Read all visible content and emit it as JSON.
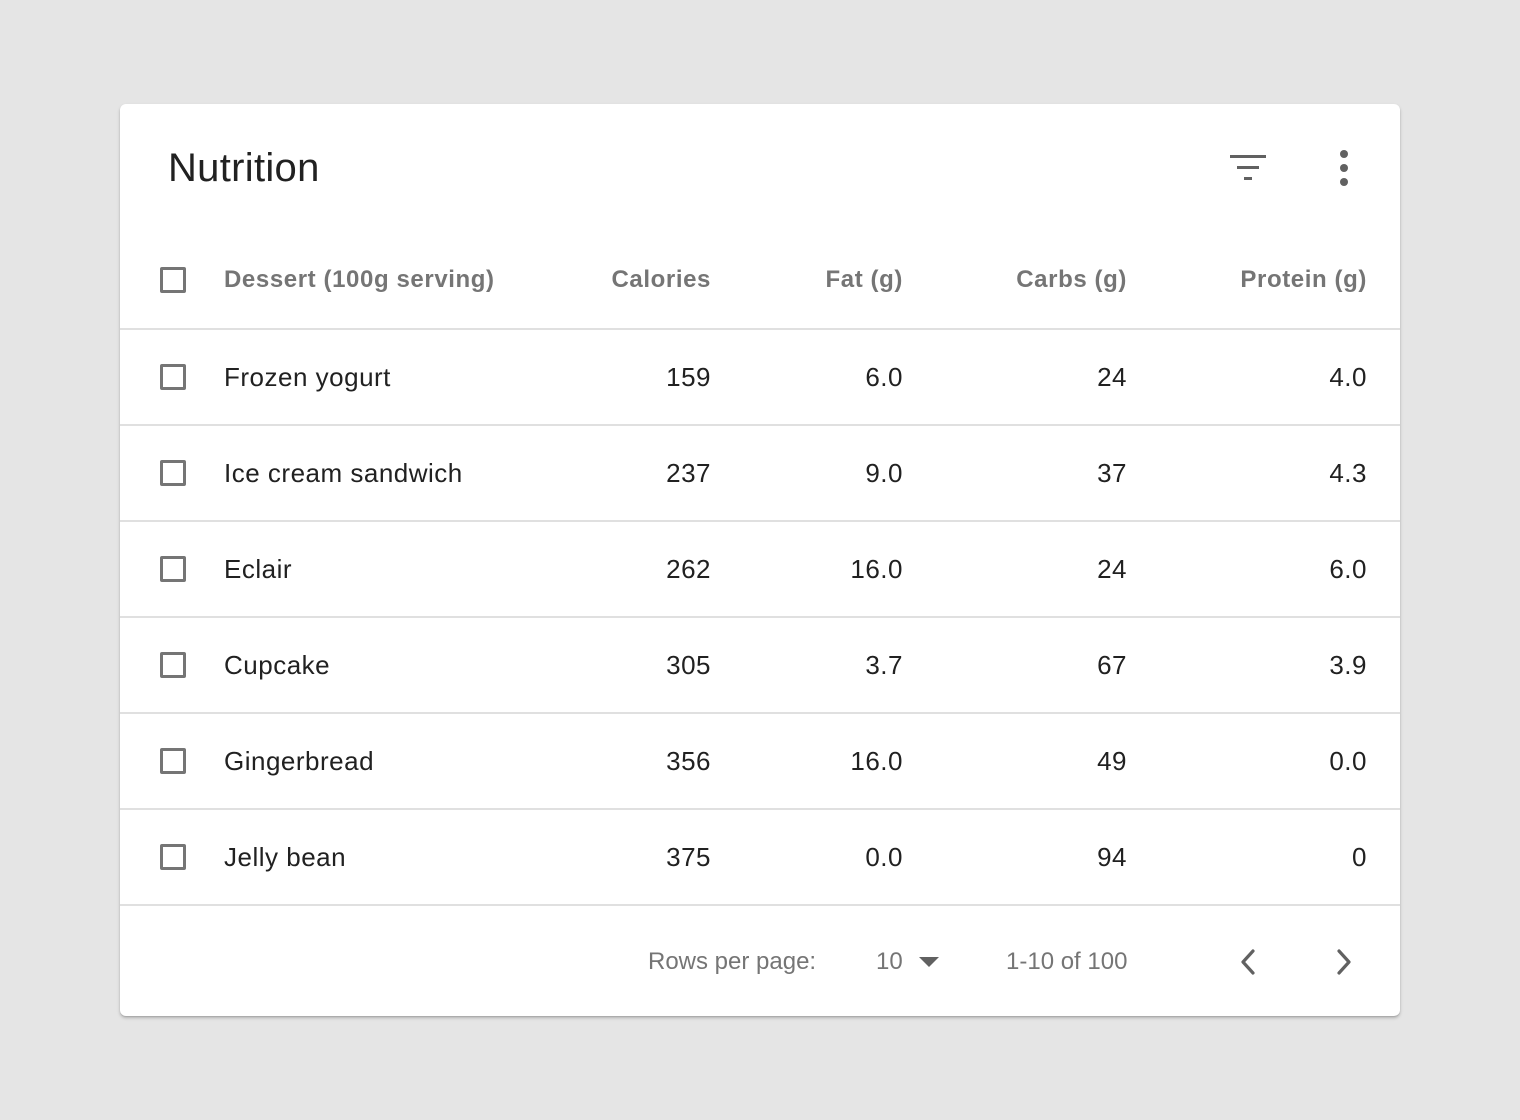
{
  "card": {
    "title": "Nutrition",
    "header_icons": [
      "filter-icon",
      "more-vert-icon"
    ]
  },
  "table": {
    "columns": [
      "Dessert (100g serving)",
      "Calories",
      "Fat (g)",
      "Carbs (g)",
      "Protein (g)"
    ],
    "rows": [
      {
        "name": "Frozen yogurt",
        "calories": "159",
        "fat": "6.0",
        "carbs": "24",
        "protein": "4.0"
      },
      {
        "name": "Ice cream sandwich",
        "calories": "237",
        "fat": "9.0",
        "carbs": "37",
        "protein": "4.3"
      },
      {
        "name": "Eclair",
        "calories": "262",
        "fat": "16.0",
        "carbs": "24",
        "protein": "6.0"
      },
      {
        "name": "Cupcake",
        "calories": "305",
        "fat": "3.7",
        "carbs": "67",
        "protein": "3.9"
      },
      {
        "name": "Gingerbread",
        "calories": "356",
        "fat": "16.0",
        "carbs": "49",
        "protein": "0.0"
      },
      {
        "name": "Jelly bean",
        "calories": "375",
        "fat": "0.0",
        "carbs": "94",
        "protein": "0"
      }
    ]
  },
  "footer": {
    "rows_per_page_label": "Rows per page:",
    "rows_per_page_value": "10",
    "range_text": "1-10 of 100",
    "nav_icons": [
      "chevron-left-icon",
      "chevron-right-icon"
    ]
  },
  "colors": {
    "page_background": "#e5e5e5",
    "card_background": "#ffffff",
    "primary_text": "#212121",
    "secondary_text": "#757575",
    "divider": "#e0e0e0"
  }
}
